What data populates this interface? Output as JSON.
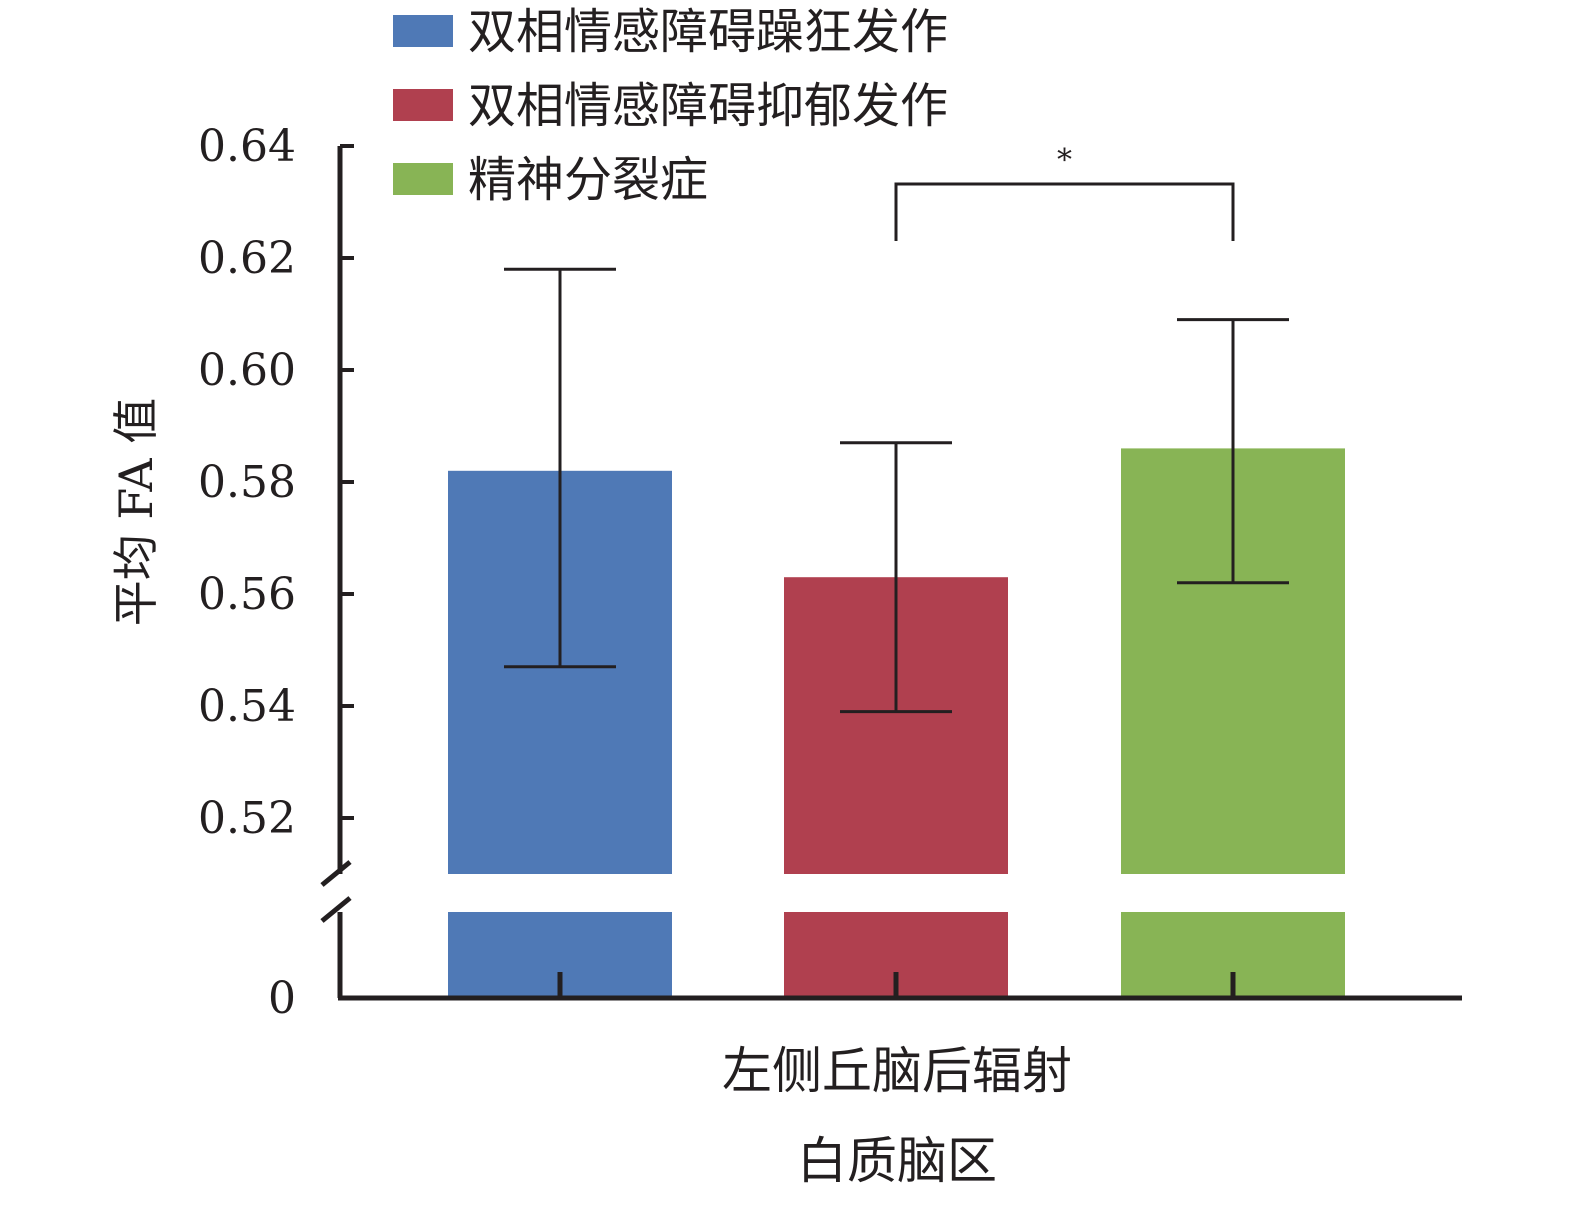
{
  "chart_data": {
    "type": "bar",
    "categories": [
      "左侧丘脑后辐射"
    ],
    "xlabel": "白质脑区",
    "ylabel": "平均 FA 值",
    "y_axis_break": true,
    "ylim_upper_segment": [
      0.51,
      0.64
    ],
    "ylim_lower_segment": [
      0,
      0.51
    ],
    "y_ticks": [
      "0.64",
      "0.62",
      "0.60",
      "0.58",
      "0.56",
      "0.54",
      "0.52",
      "0"
    ],
    "legend_position": "top-left",
    "grid": false,
    "series": [
      {
        "name": "双相情感障碍躁狂发作",
        "color": "#4f79b6",
        "values": [
          0.582
        ],
        "error_low": [
          0.547
        ],
        "error_high": [
          0.618
        ]
      },
      {
        "name": "双相情感障碍抑郁发作",
        "color": "#b0404f",
        "values": [
          0.563
        ],
        "error_low": [
          0.539
        ],
        "error_high": [
          0.587
        ]
      },
      {
        "name": "精神分裂症",
        "color": "#88b455",
        "values": [
          0.586
        ],
        "error_low": [
          0.562
        ],
        "error_high": [
          0.609
        ]
      }
    ],
    "annotations": [
      {
        "text": "*",
        "between": [
          "双相情感障碍抑郁发作",
          "精神分裂症"
        ]
      }
    ]
  }
}
